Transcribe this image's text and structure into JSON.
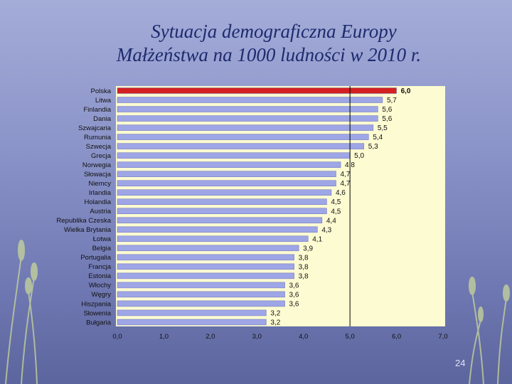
{
  "title_line1": "Sytuacja demograficzna Europy",
  "title_line2": "Małżeństwa na 1000 ludności w 2010 r.",
  "page_number": "24",
  "colors": {
    "highlight_bar": "#d42020",
    "bar": "#9ea6e6",
    "plot_background": "#fdfbd2",
    "reference_line": "#000000"
  },
  "chart_data": {
    "type": "bar",
    "orientation": "horizontal",
    "categories": [
      "Polska",
      "Litwa",
      "Finlandia",
      "Dania",
      "Szwajcaria",
      "Rumunia",
      "Szwecja",
      "Grecja",
      "Norwegia",
      "Słowacja",
      "Niemcy",
      "Irlandia",
      "Holandia",
      "Austria",
      "Republika Czeska",
      "Wielka Brytania",
      "Łotwa",
      "Belgia",
      "Portugalia",
      "Francja",
      "Estonia",
      "Włochy",
      "Węgry",
      "Hiszpania",
      "Słowenia",
      "Bułgaria"
    ],
    "values": [
      6.0,
      5.7,
      5.6,
      5.6,
      5.5,
      5.4,
      5.3,
      5.0,
      4.8,
      4.7,
      4.7,
      4.6,
      4.5,
      4.5,
      4.4,
      4.3,
      4.1,
      3.9,
      3.8,
      3.8,
      3.8,
      3.6,
      3.6,
      3.6,
      3.2,
      3.2
    ],
    "value_labels": [
      "6,0",
      "5,7",
      "5,6",
      "5,6",
      "5,5",
      "5,4",
      "5,3",
      "5,0",
      "4,8",
      "4,7",
      "4,7",
      "4,6",
      "4,5",
      "4,5",
      "4,4",
      "4,3",
      "4,1",
      "3,9",
      "3,8",
      "3,8",
      "3,8",
      "3,6",
      "3,6",
      "3,6",
      "3,2",
      "3,2"
    ],
    "highlight": "Polska",
    "xlim": [
      0,
      7
    ],
    "x_ticks": [
      0,
      1,
      2,
      3,
      4,
      5,
      6,
      7
    ],
    "x_tick_labels": [
      "0,0",
      "1,0",
      "2,0",
      "3,0",
      "4,0",
      "5,0",
      "6,0",
      "7,0"
    ],
    "reference_line": 5.0,
    "grid": false,
    "legend": "none"
  }
}
